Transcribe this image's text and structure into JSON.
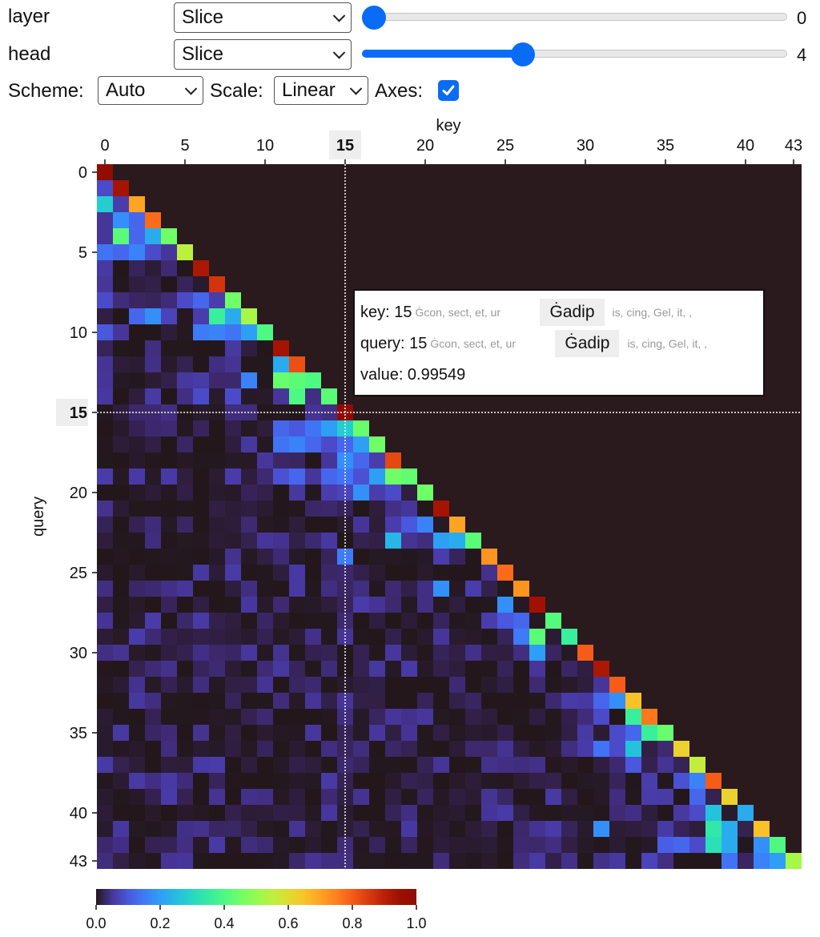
{
  "controls": {
    "layer_label": "layer",
    "layer_select": "Slice",
    "layer_value": "0",
    "layer_slider_fraction": 0.0,
    "head_label": "head",
    "head_select": "Slice",
    "head_value": "4",
    "head_slider_fraction": 0.372,
    "scheme_label": "Scheme:",
    "scheme_select": "Auto",
    "scale_label": "Scale:",
    "scale_select": "Linear",
    "axes_label": "Axes:",
    "axes_checked": true,
    "accent_color": "#0a6cf5"
  },
  "chart_data": {
    "type": "heatmap",
    "xlabel": "key",
    "ylabel": "query",
    "n": 44,
    "x_ticks": [
      "0",
      "5",
      "10",
      "15",
      "20",
      "25",
      "30",
      "35",
      "40",
      "43"
    ],
    "y_ticks": [
      "0",
      "5",
      "10",
      "15",
      "20",
      "25",
      "30",
      "35",
      "40",
      "43"
    ],
    "highlight": {
      "key": 15,
      "query": 15
    },
    "colorbar": {
      "ticks": [
        "0.0",
        "0.2",
        "0.4",
        "0.6",
        "0.8",
        "1.0"
      ],
      "range": [
        0,
        1
      ],
      "colormap": "turbo"
    },
    "diagonal": [
      1.0,
      0.93,
      0.7,
      0.78,
      0.45,
      0.55,
      0.92,
      0.86,
      0.45,
      0.52,
      0.4,
      0.93,
      0.82,
      0.4,
      0.42,
      0.99,
      0.44,
      0.45,
      0.83,
      0.43,
      0.45,
      0.93,
      0.7,
      0.42,
      0.72,
      0.78,
      0.72,
      0.94,
      0.41,
      0.36,
      0.8,
      0.92,
      0.8,
      0.65,
      0.76,
      0.44,
      0.62,
      0.56,
      0.8,
      0.62,
      0.22,
      0.65,
      0.4,
      0.52
    ],
    "notable_cells": [
      [
        1,
        0,
        0.08
      ],
      [
        2,
        0,
        0.28
      ],
      [
        2,
        1,
        0.06
      ],
      [
        3,
        0,
        0.05
      ],
      [
        3,
        1,
        0.18
      ],
      [
        3,
        2,
        0.12
      ],
      [
        4,
        0,
        0.05
      ],
      [
        4,
        1,
        0.42
      ],
      [
        4,
        2,
        0.12
      ],
      [
        4,
        3,
        0.22
      ],
      [
        5,
        0,
        0.14
      ],
      [
        5,
        1,
        0.12
      ],
      [
        5,
        2,
        0.16
      ],
      [
        5,
        3,
        0.08
      ],
      [
        5,
        4,
        0.05
      ],
      [
        7,
        0,
        0.05
      ],
      [
        8,
        0,
        0.08
      ],
      [
        8,
        5,
        0.08
      ],
      [
        8,
        6,
        0.12
      ],
      [
        8,
        7,
        0.06
      ],
      [
        9,
        2,
        0.12
      ],
      [
        9,
        3,
        0.18
      ],
      [
        9,
        4,
        0.07
      ],
      [
        9,
        6,
        0.06
      ],
      [
        9,
        7,
        0.36
      ],
      [
        9,
        8,
        0.22
      ],
      [
        10,
        0,
        0.1
      ],
      [
        10,
        1,
        0.05
      ],
      [
        10,
        6,
        0.15
      ],
      [
        10,
        7,
        0.16
      ],
      [
        10,
        8,
        0.14
      ],
      [
        10,
        9,
        0.2
      ],
      [
        12,
        11,
        0.22
      ],
      [
        13,
        9,
        0.16
      ],
      [
        13,
        11,
        0.44
      ],
      [
        13,
        12,
        0.42
      ],
      [
        14,
        6,
        0.08
      ],
      [
        14,
        8,
        0.08
      ],
      [
        14,
        11,
        0.05
      ],
      [
        14,
        12,
        0.4
      ],
      [
        16,
        11,
        0.12
      ],
      [
        16,
        12,
        0.1
      ],
      [
        16,
        13,
        0.14
      ],
      [
        16,
        14,
        0.2
      ],
      [
        16,
        15,
        0.28
      ],
      [
        17,
        11,
        0.14
      ],
      [
        17,
        12,
        0.16
      ],
      [
        17,
        13,
        0.12
      ],
      [
        17,
        14,
        0.08
      ],
      [
        17,
        15,
        0.12
      ],
      [
        17,
        16,
        0.2
      ],
      [
        18,
        14,
        0.05
      ],
      [
        18,
        15,
        0.18
      ],
      [
        18,
        16,
        0.12
      ],
      [
        18,
        17,
        0.06
      ],
      [
        19,
        11,
        0.09
      ],
      [
        19,
        12,
        0.12
      ],
      [
        19,
        13,
        0.05
      ],
      [
        19,
        14,
        0.12
      ],
      [
        19,
        15,
        0.14
      ],
      [
        19,
        16,
        0.09
      ],
      [
        19,
        17,
        0.2
      ],
      [
        19,
        18,
        0.45
      ],
      [
        20,
        14,
        0.06
      ],
      [
        20,
        15,
        0.07
      ],
      [
        20,
        16,
        0.18
      ],
      [
        20,
        17,
        0.06
      ],
      [
        20,
        18,
        0.08
      ],
      [
        22,
        18,
        0.06
      ],
      [
        22,
        19,
        0.1
      ],
      [
        22,
        20,
        0.16
      ],
      [
        23,
        18,
        0.24
      ],
      [
        23,
        21,
        0.2
      ],
      [
        23,
        22,
        0.22
      ],
      [
        24,
        15,
        0.15
      ],
      [
        24,
        21,
        0.06
      ],
      [
        26,
        21,
        0.18
      ],
      [
        26,
        23,
        0.06
      ],
      [
        27,
        25,
        0.18
      ],
      [
        28,
        24,
        0.06
      ],
      [
        28,
        25,
        0.1
      ],
      [
        28,
        26,
        0.12
      ],
      [
        29,
        26,
        0.15
      ],
      [
        29,
        27,
        0.42
      ],
      [
        30,
        27,
        0.2
      ],
      [
        31,
        27,
        0.05
      ],
      [
        32,
        31,
        0.05
      ],
      [
        33,
        31,
        0.12
      ],
      [
        33,
        32,
        0.18
      ],
      [
        34,
        31,
        0.08
      ],
      [
        34,
        33,
        0.36
      ],
      [
        35,
        32,
        0.08
      ],
      [
        35,
        33,
        0.12
      ],
      [
        35,
        34,
        0.36
      ],
      [
        36,
        31,
        0.14
      ],
      [
        36,
        32,
        0.08
      ],
      [
        36,
        33,
        0.26
      ],
      [
        37,
        33,
        0.1
      ],
      [
        38,
        34,
        0.06
      ],
      [
        38,
        36,
        0.09
      ],
      [
        38,
        37,
        0.16
      ],
      [
        39,
        37,
        0.12
      ],
      [
        40,
        37,
        0.08
      ],
      [
        40,
        38,
        0.26
      ],
      [
        41,
        31,
        0.18
      ],
      [
        41,
        38,
        0.34
      ],
      [
        41,
        39,
        0.22
      ],
      [
        42,
        35,
        0.11
      ],
      [
        42,
        36,
        0.12
      ],
      [
        42,
        37,
        0.08
      ],
      [
        42,
        38,
        0.32
      ],
      [
        42,
        39,
        0.22
      ],
      [
        42,
        41,
        0.18
      ],
      [
        43,
        34,
        0.07
      ],
      [
        43,
        39,
        0.14
      ],
      [
        43,
        41,
        0.16
      ],
      [
        43,
        42,
        0.2
      ]
    ]
  },
  "tooltip": {
    "key_label": "key: 15",
    "key_left": "Ġcon, sect, et, ur",
    "key_token": "Ġadip",
    "key_right": "is, cing, Gel, it, ,",
    "query_label": "query: 15",
    "query_left": "Ġcon, sect, et, ur",
    "query_token": "Ġadip",
    "query_right": "is, cing, Gel, it, ,",
    "value_label": "value: 0.99549"
  }
}
